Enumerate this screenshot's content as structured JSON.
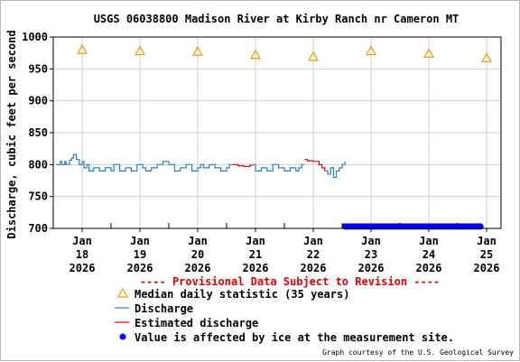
{
  "chart_data": {
    "type": "line",
    "title": "USGS 06038800 Madison River at Kirby Ranch nr Cameron MT",
    "ylabel": "Discharge, cubic feet per second",
    "xlabel": "",
    "ylim": [
      700,
      1000
    ],
    "yticks": [
      700,
      750,
      800,
      850,
      900,
      950,
      1000
    ],
    "ytick_labels": [
      "700",
      "750",
      "800",
      "850",
      "900",
      "950",
      "1000"
    ],
    "xlim": [
      -0.5,
      7.25
    ],
    "xticks": [
      0,
      1,
      2,
      3,
      4,
      5,
      6,
      7
    ],
    "xtick_labels": [
      [
        "Jan",
        "18",
        "2026"
      ],
      [
        "Jan",
        "19",
        "2026"
      ],
      [
        "Jan",
        "20",
        "2026"
      ],
      [
        "Jan",
        "21",
        "2026"
      ],
      [
        "Jan",
        "22",
        "2026"
      ],
      [
        "Jan",
        "23",
        "2026"
      ],
      [
        "Jan",
        "24",
        "2026"
      ],
      [
        "Jan",
        "25",
        "2026"
      ]
    ],
    "grid": true,
    "provisional_note": "---- Provisional Data Subject to Revision ----",
    "credit": "Graph courtesy of the U.S. Geological Survey",
    "series": [
      {
        "name": "Median daily statistic (35 years)",
        "marker": "triangle",
        "color": "#e8a000",
        "x": [
          0,
          1,
          2,
          3,
          4,
          5,
          6,
          7
        ],
        "y": [
          980,
          978,
          977,
          972,
          969,
          978,
          974,
          967
        ]
      },
      {
        "name": "Discharge",
        "color": "#2b7fc0",
        "segments": [
          {
            "x": [
              -0.45,
              -0.38,
              -0.35,
              -0.3,
              -0.28,
              -0.22,
              -0.18,
              -0.15,
              -0.1,
              -0.05,
              0.0,
              0.03,
              0.08,
              0.12,
              0.2,
              0.3,
              0.4,
              0.5,
              0.55,
              0.65,
              0.75,
              0.85,
              0.95,
              1.05,
              1.1,
              1.2,
              1.3,
              1.4,
              1.5,
              1.6,
              1.7,
              1.8,
              1.9,
              2.0,
              2.05,
              2.1,
              2.2,
              2.3,
              2.4,
              2.5,
              2.55,
              2.6
            ],
            "y": [
              800,
              805,
              800,
              805,
              800,
              807,
              810,
              816,
              808,
              800,
              805,
              795,
              800,
              790,
              795,
              790,
              795,
              790,
              800,
              790,
              795,
              790,
              800,
              795,
              790,
              795,
              800,
              805,
              800,
              790,
              795,
              800,
              790,
              795,
              800,
              795,
              800,
              795,
              790,
              795,
              800,
              800
            ]
          },
          {
            "x": [
              2.95,
              3.0,
              3.1,
              3.2,
              3.3,
              3.4,
              3.5,
              3.6,
              3.7,
              3.75,
              3.8,
              3.85
            ],
            "y": [
              800,
              790,
              795,
              790,
              800,
              795,
              790,
              795,
              790,
              795,
              800,
              800
            ]
          },
          {
            "x": [
              4.2,
              4.25,
              4.3,
              4.35,
              4.4,
              4.45,
              4.5,
              4.55
            ],
            "y": [
              790,
              785,
              795,
              780,
              790,
              795,
              800,
              805
            ]
          }
        ]
      },
      {
        "name": "Estimated discharge",
        "color": "#e00000",
        "segments": [
          {
            "x": [
              2.6,
              2.7,
              2.8,
              2.9,
              2.95
            ],
            "y": [
              800,
              798,
              797,
              799,
              800
            ]
          },
          {
            "x": [
              3.85,
              3.9,
              4.0,
              4.1,
              4.15,
              4.2
            ],
            "y": [
              808,
              806,
              805,
              800,
              795,
              790
            ]
          }
        ]
      },
      {
        "name": "Value is affected by ice at the measurement site.",
        "marker": "dot",
        "color": "#0000ff",
        "x": [
          4.55,
          6.9
        ],
        "y": [
          703,
          703
        ]
      }
    ],
    "legend_position": "bottom"
  }
}
